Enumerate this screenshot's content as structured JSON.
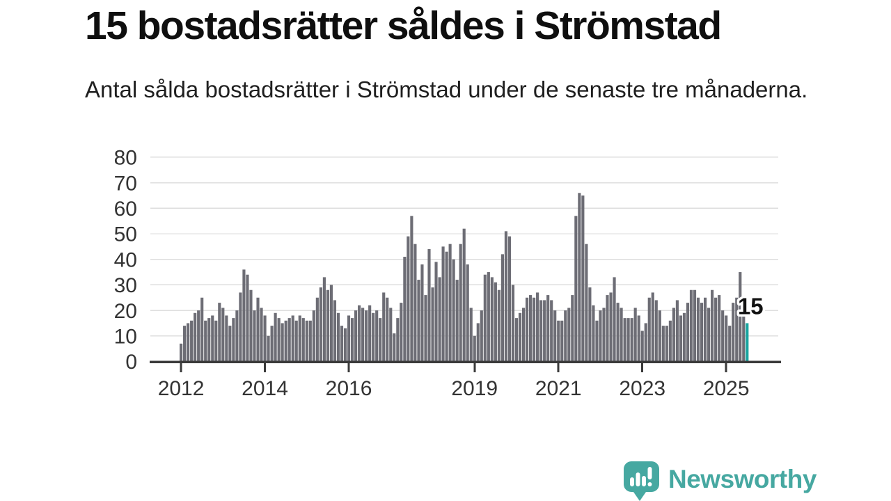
{
  "page": {
    "background": "#ffffff"
  },
  "header": {
    "title": "15 bostadsrätter såldes i Strömstad",
    "subtitle": "Antal sålda bostadsrätter i Strömstad under de senaste tre månaderna."
  },
  "chart_data": {
    "type": "bar",
    "x_start": "2012-01",
    "frequency": "monthly",
    "values": [
      7,
      14,
      15,
      16,
      19,
      20,
      25,
      16,
      17,
      18,
      16,
      23,
      21,
      18,
      14,
      17,
      20,
      27,
      36,
      34,
      28,
      20,
      25,
      21,
      18,
      10,
      14,
      19,
      17,
      15,
      16,
      17,
      18,
      16,
      18,
      17,
      16,
      16,
      20,
      25,
      29,
      33,
      28,
      30,
      24,
      19,
      14,
      13,
      18,
      17,
      20,
      22,
      21,
      20,
      22,
      19,
      20,
      17,
      27,
      25,
      21,
      11,
      17,
      23,
      41,
      49,
      57,
      46,
      32,
      38,
      26,
      44,
      29,
      39,
      33,
      45,
      43,
      46,
      40,
      32,
      46,
      52,
      38,
      21,
      10,
      15,
      20,
      34,
      35,
      33,
      31,
      28,
      42,
      51,
      49,
      30,
      17,
      19,
      21,
      25,
      26,
      25,
      27,
      24,
      24,
      26,
      24,
      20,
      16,
      16,
      20,
      21,
      26,
      57,
      66,
      65,
      46,
      29,
      22,
      16,
      20,
      21,
      26,
      27,
      33,
      23,
      21,
      17,
      17,
      17,
      21,
      18,
      12,
      15,
      25,
      27,
      24,
      20,
      14,
      14,
      16,
      21,
      24,
      18,
      19,
      23,
      28,
      28,
      25,
      23,
      25,
      21,
      28,
      25,
      26,
      20,
      18,
      14,
      23,
      25,
      35,
      19,
      15
    ],
    "ylim": [
      0,
      80
    ],
    "yticks": [
      0,
      10,
      20,
      30,
      40,
      50,
      60,
      70,
      80
    ],
    "xticks": [
      {
        "label": "2012",
        "month_index": 0
      },
      {
        "label": "2014",
        "month_index": 24
      },
      {
        "label": "2016",
        "month_index": 48
      },
      {
        "label": "2019",
        "month_index": 84
      },
      {
        "label": "2021",
        "month_index": 108
      },
      {
        "label": "2023",
        "month_index": 132
      },
      {
        "label": "2025",
        "month_index": 156
      }
    ],
    "grid": "horizontal",
    "legend": "none",
    "highlight": {
      "index": 162,
      "value": 15,
      "label": "15"
    },
    "colors": {
      "bar": "#6d6d75",
      "highlight": "#19a5a0",
      "axis": "#3a3a3a",
      "grid": "#dedede",
      "tick_label": "#333333",
      "annotation": "#111111",
      "annotation_halo": "#ffffff"
    }
  },
  "logo": {
    "name": "Newsworthy",
    "color": "#46a8a1"
  }
}
